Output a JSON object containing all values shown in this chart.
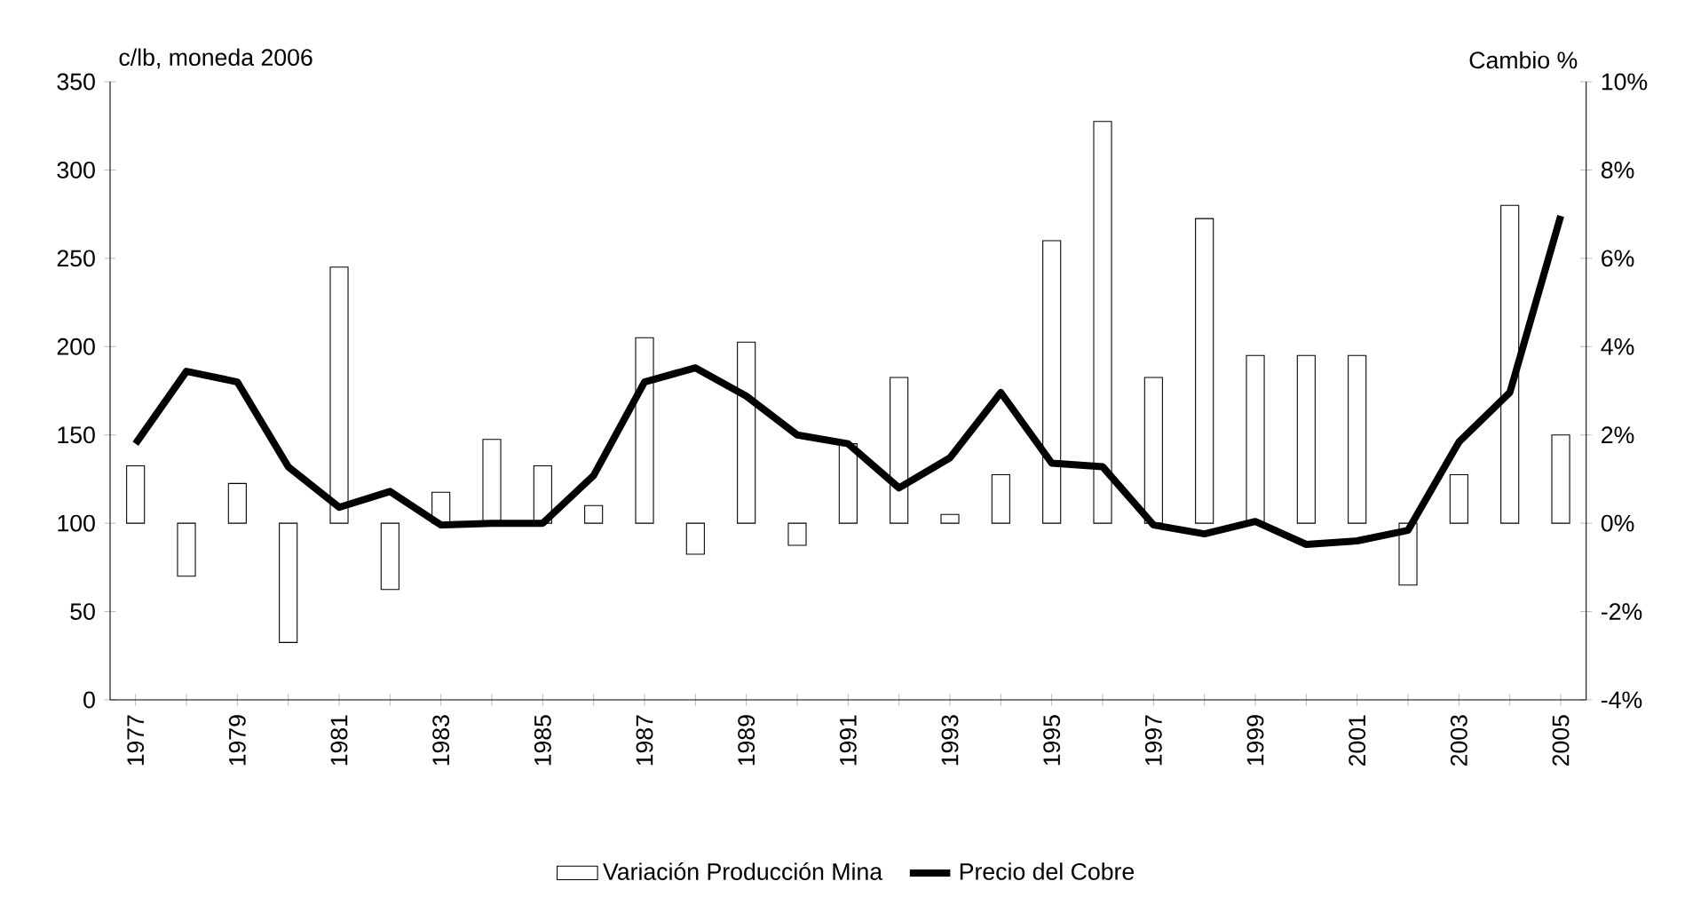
{
  "chart_data": {
    "type": "bar",
    "ylabel": "c/lb, moneda 2006",
    "y2label": "Cambio %",
    "categories": [
      "1977",
      null,
      "1979",
      null,
      "1981",
      null,
      "1983",
      null,
      "1985",
      null,
      "1987",
      null,
      "1989",
      null,
      "1991",
      null,
      "1993",
      null,
      "1995",
      null,
      "1997",
      null,
      "1999",
      null,
      "2001",
      null,
      "2003",
      null,
      "2005"
    ],
    "series": [
      {
        "name": "Variación Producción Mina",
        "axis": "y2",
        "color": "#ffffff",
        "values": [
          1.3,
          -1.2,
          0.9,
          -2.7,
          5.8,
          -1.5,
          0.7,
          1.9,
          1.3,
          0.4,
          4.2,
          -0.7,
          4.1,
          -0.5,
          1.8,
          3.3,
          0.2,
          1.1,
          6.4,
          9.1,
          3.3,
          6.9,
          3.8,
          3.8,
          3.8,
          -1.4,
          1.1,
          7.2,
          2.0
        ]
      },
      {
        "name": "Precio del Cobre",
        "type": "line",
        "color": "#000000",
        "values": [
          145,
          186,
          180,
          132,
          109,
          118,
          99,
          100,
          100,
          127,
          180,
          188,
          172,
          150,
          145,
          120,
          137,
          174,
          134,
          132,
          99,
          94,
          101,
          88,
          90,
          96,
          146,
          174,
          274
        ]
      }
    ],
    "ylim": [
      0,
      350
    ],
    "yticks": [
      0,
      50,
      100,
      150,
      200,
      250,
      300,
      350
    ],
    "y2lim": [
      -4,
      10
    ],
    "y2ticks": [
      {
        "value": -4,
        "label": "-4%"
      },
      {
        "value": -2,
        "label": "-2%"
      },
      {
        "value": 0,
        "label": "0%"
      },
      {
        "value": 2,
        "label": "2%"
      },
      {
        "value": 4,
        "label": "4%"
      },
      {
        "value": 6,
        "label": "6%"
      },
      {
        "value": 8,
        "label": "8%"
      },
      {
        "value": 10,
        "label": "10%"
      }
    ],
    "legend": "bottom"
  }
}
